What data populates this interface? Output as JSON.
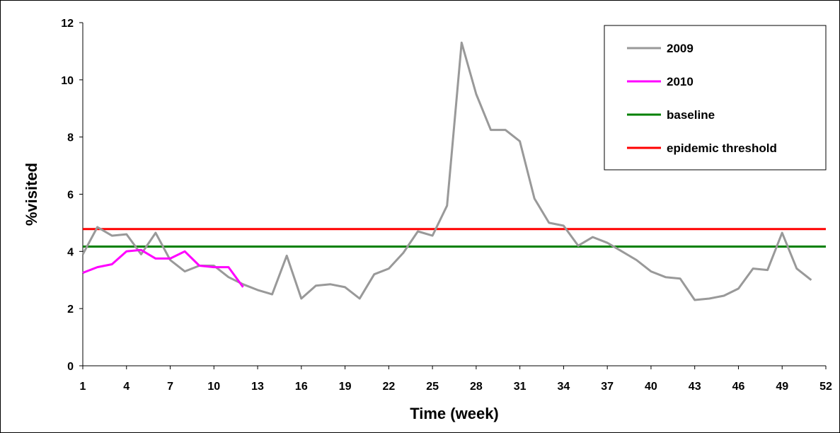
{
  "chart_data": {
    "type": "line",
    "xlabel": "Time (week)",
    "ylabel": "%visited",
    "xlim": [
      1,
      52
    ],
    "ylim": [
      0,
      12
    ],
    "x_ticks": [
      1,
      4,
      7,
      10,
      13,
      16,
      19,
      22,
      25,
      28,
      31,
      34,
      37,
      40,
      43,
      46,
      49,
      52
    ],
    "y_ticks": [
      0,
      2,
      4,
      6,
      8,
      10,
      12
    ],
    "grid": false,
    "legend_position": "top-right",
    "series": [
      {
        "name": "2009",
        "color": "#999999",
        "x": [
          1,
          2,
          3,
          4,
          5,
          6,
          7,
          8,
          9,
          10,
          11,
          12,
          13,
          14,
          15,
          16,
          17,
          18,
          19,
          20,
          21,
          22,
          23,
          24,
          25,
          26,
          27,
          28,
          29,
          30,
          31,
          32,
          33,
          34,
          35,
          36,
          37,
          38,
          39,
          40,
          41,
          42,
          43,
          44,
          45,
          46,
          47,
          48,
          49,
          50,
          51
        ],
        "y": [
          3.9,
          4.85,
          4.55,
          4.6,
          3.9,
          4.65,
          3.7,
          3.3,
          3.5,
          3.5,
          3.1,
          2.85,
          2.65,
          2.5,
          3.85,
          2.35,
          2.8,
          2.85,
          2.75,
          2.35,
          3.2,
          3.4,
          3.95,
          4.7,
          4.55,
          5.6,
          11.3,
          9.5,
          8.25,
          8.25,
          7.85,
          5.85,
          5.0,
          4.9,
          4.2,
          4.5,
          4.3,
          4.0,
          3.7,
          3.3,
          3.1,
          3.05,
          2.3,
          2.35,
          2.45,
          2.7,
          3.4,
          3.35,
          4.65,
          3.4,
          3.0
        ]
      },
      {
        "name": "2010",
        "color": "#ff00ff",
        "x": [
          1,
          2,
          3,
          4,
          5,
          6,
          7,
          8,
          9,
          10,
          11,
          12
        ],
        "y": [
          3.25,
          3.45,
          3.55,
          4.0,
          4.05,
          3.75,
          3.75,
          4.0,
          3.5,
          3.45,
          3.45,
          2.75
        ]
      },
      {
        "name": "baseline",
        "color": "#008000",
        "x": [
          1,
          52
        ],
        "y": [
          4.17,
          4.17
        ]
      },
      {
        "name": "epidemic threshold",
        "color": "#ff0000",
        "x": [
          1,
          52
        ],
        "y": [
          4.78,
          4.78
        ]
      }
    ]
  }
}
